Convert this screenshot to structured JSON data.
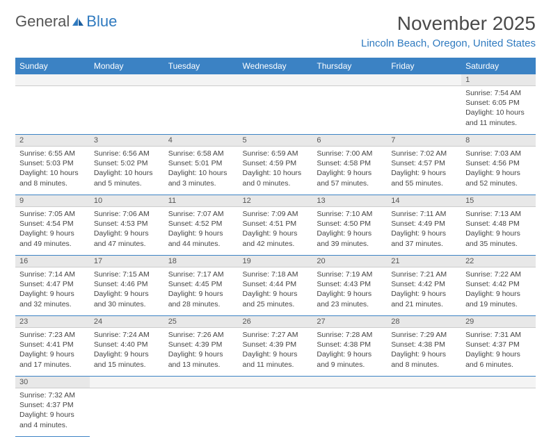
{
  "logo": {
    "part1": "General",
    "part2": "Blue"
  },
  "header": {
    "month_title": "November 2025",
    "location": "Lincoln Beach, Oregon, United States"
  },
  "colors": {
    "header_bg": "#3b82c4",
    "header_text": "#ffffff",
    "daynum_bg": "#e8e8e8",
    "border": "#3b82c4",
    "logo_gray": "#555555",
    "logo_blue": "#2f7abf"
  },
  "day_headers": [
    "Sunday",
    "Monday",
    "Tuesday",
    "Wednesday",
    "Thursday",
    "Friday",
    "Saturday"
  ],
  "weeks": [
    {
      "nums": [
        "",
        "",
        "",
        "",
        "",
        "",
        "1"
      ],
      "cells": [
        null,
        null,
        null,
        null,
        null,
        null,
        {
          "sunrise": "Sunrise: 7:54 AM",
          "sunset": "Sunset: 6:05 PM",
          "daylight": "Daylight: 10 hours and 11 minutes."
        }
      ]
    },
    {
      "nums": [
        "2",
        "3",
        "4",
        "5",
        "6",
        "7",
        "8"
      ],
      "cells": [
        {
          "sunrise": "Sunrise: 6:55 AM",
          "sunset": "Sunset: 5:03 PM",
          "daylight": "Daylight: 10 hours and 8 minutes."
        },
        {
          "sunrise": "Sunrise: 6:56 AM",
          "sunset": "Sunset: 5:02 PM",
          "daylight": "Daylight: 10 hours and 5 minutes."
        },
        {
          "sunrise": "Sunrise: 6:58 AM",
          "sunset": "Sunset: 5:01 PM",
          "daylight": "Daylight: 10 hours and 3 minutes."
        },
        {
          "sunrise": "Sunrise: 6:59 AM",
          "sunset": "Sunset: 4:59 PM",
          "daylight": "Daylight: 10 hours and 0 minutes."
        },
        {
          "sunrise": "Sunrise: 7:00 AM",
          "sunset": "Sunset: 4:58 PM",
          "daylight": "Daylight: 9 hours and 57 minutes."
        },
        {
          "sunrise": "Sunrise: 7:02 AM",
          "sunset": "Sunset: 4:57 PM",
          "daylight": "Daylight: 9 hours and 55 minutes."
        },
        {
          "sunrise": "Sunrise: 7:03 AM",
          "sunset": "Sunset: 4:56 PM",
          "daylight": "Daylight: 9 hours and 52 minutes."
        }
      ]
    },
    {
      "nums": [
        "9",
        "10",
        "11",
        "12",
        "13",
        "14",
        "15"
      ],
      "cells": [
        {
          "sunrise": "Sunrise: 7:05 AM",
          "sunset": "Sunset: 4:54 PM",
          "daylight": "Daylight: 9 hours and 49 minutes."
        },
        {
          "sunrise": "Sunrise: 7:06 AM",
          "sunset": "Sunset: 4:53 PM",
          "daylight": "Daylight: 9 hours and 47 minutes."
        },
        {
          "sunrise": "Sunrise: 7:07 AM",
          "sunset": "Sunset: 4:52 PM",
          "daylight": "Daylight: 9 hours and 44 minutes."
        },
        {
          "sunrise": "Sunrise: 7:09 AM",
          "sunset": "Sunset: 4:51 PM",
          "daylight": "Daylight: 9 hours and 42 minutes."
        },
        {
          "sunrise": "Sunrise: 7:10 AM",
          "sunset": "Sunset: 4:50 PM",
          "daylight": "Daylight: 9 hours and 39 minutes."
        },
        {
          "sunrise": "Sunrise: 7:11 AM",
          "sunset": "Sunset: 4:49 PM",
          "daylight": "Daylight: 9 hours and 37 minutes."
        },
        {
          "sunrise": "Sunrise: 7:13 AM",
          "sunset": "Sunset: 4:48 PM",
          "daylight": "Daylight: 9 hours and 35 minutes."
        }
      ]
    },
    {
      "nums": [
        "16",
        "17",
        "18",
        "19",
        "20",
        "21",
        "22"
      ],
      "cells": [
        {
          "sunrise": "Sunrise: 7:14 AM",
          "sunset": "Sunset: 4:47 PM",
          "daylight": "Daylight: 9 hours and 32 minutes."
        },
        {
          "sunrise": "Sunrise: 7:15 AM",
          "sunset": "Sunset: 4:46 PM",
          "daylight": "Daylight: 9 hours and 30 minutes."
        },
        {
          "sunrise": "Sunrise: 7:17 AM",
          "sunset": "Sunset: 4:45 PM",
          "daylight": "Daylight: 9 hours and 28 minutes."
        },
        {
          "sunrise": "Sunrise: 7:18 AM",
          "sunset": "Sunset: 4:44 PM",
          "daylight": "Daylight: 9 hours and 25 minutes."
        },
        {
          "sunrise": "Sunrise: 7:19 AM",
          "sunset": "Sunset: 4:43 PM",
          "daylight": "Daylight: 9 hours and 23 minutes."
        },
        {
          "sunrise": "Sunrise: 7:21 AM",
          "sunset": "Sunset: 4:42 PM",
          "daylight": "Daylight: 9 hours and 21 minutes."
        },
        {
          "sunrise": "Sunrise: 7:22 AM",
          "sunset": "Sunset: 4:42 PM",
          "daylight": "Daylight: 9 hours and 19 minutes."
        }
      ]
    },
    {
      "nums": [
        "23",
        "24",
        "25",
        "26",
        "27",
        "28",
        "29"
      ],
      "cells": [
        {
          "sunrise": "Sunrise: 7:23 AM",
          "sunset": "Sunset: 4:41 PM",
          "daylight": "Daylight: 9 hours and 17 minutes."
        },
        {
          "sunrise": "Sunrise: 7:24 AM",
          "sunset": "Sunset: 4:40 PM",
          "daylight": "Daylight: 9 hours and 15 minutes."
        },
        {
          "sunrise": "Sunrise: 7:26 AM",
          "sunset": "Sunset: 4:39 PM",
          "daylight": "Daylight: 9 hours and 13 minutes."
        },
        {
          "sunrise": "Sunrise: 7:27 AM",
          "sunset": "Sunset: 4:39 PM",
          "daylight": "Daylight: 9 hours and 11 minutes."
        },
        {
          "sunrise": "Sunrise: 7:28 AM",
          "sunset": "Sunset: 4:38 PM",
          "daylight": "Daylight: 9 hours and 9 minutes."
        },
        {
          "sunrise": "Sunrise: 7:29 AM",
          "sunset": "Sunset: 4:38 PM",
          "daylight": "Daylight: 9 hours and 8 minutes."
        },
        {
          "sunrise": "Sunrise: 7:31 AM",
          "sunset": "Sunset: 4:37 PM",
          "daylight": "Daylight: 9 hours and 6 minutes."
        }
      ]
    },
    {
      "nums": [
        "30",
        "",
        "",
        "",
        "",
        "",
        ""
      ],
      "cells": [
        {
          "sunrise": "Sunrise: 7:32 AM",
          "sunset": "Sunset: 4:37 PM",
          "daylight": "Daylight: 9 hours and 4 minutes."
        },
        null,
        null,
        null,
        null,
        null,
        null
      ]
    }
  ]
}
